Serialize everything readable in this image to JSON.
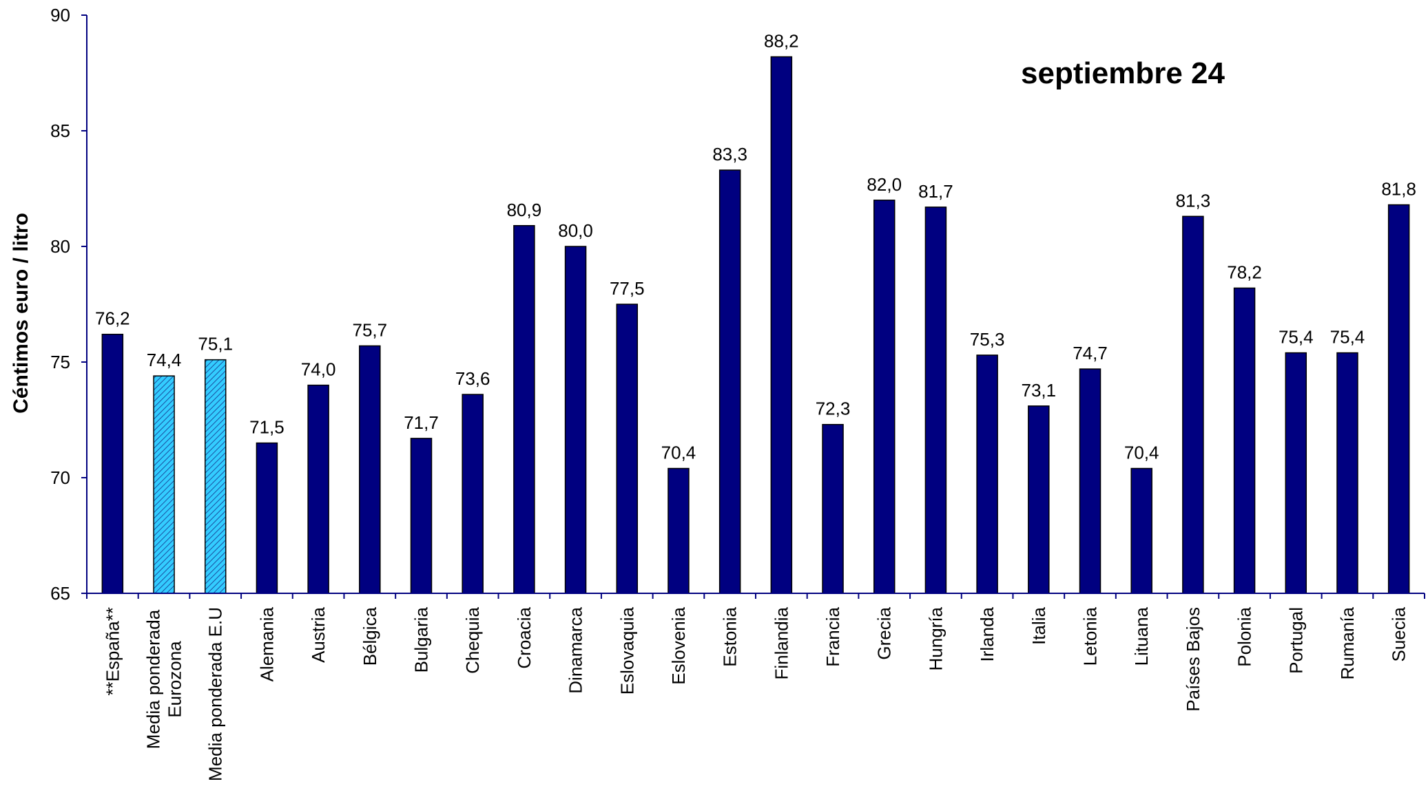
{
  "chart_data": {
    "type": "bar",
    "title": "septiembre 24",
    "ylabel": "Céntimos euro / litro",
    "xlabel": "",
    "ylim": [
      65,
      90
    ],
    "yticks": [
      65,
      70,
      75,
      80,
      85,
      90
    ],
    "grid": false,
    "categories": [
      "**España**",
      "Media ponderada Eurozona",
      "Media ponderada E.U",
      "Alemania",
      "Austria",
      "Bélgica",
      "Bulgaria",
      "Chequia",
      "Croacia",
      "Dinamarca",
      "Eslovaquia",
      "Eslovenia",
      "Estonia",
      "Finlandia",
      "Francia",
      "Grecia",
      "Hungría",
      "Irlanda",
      "Italia",
      "Letonia",
      "Lituana",
      "Países Bajos",
      "Polonia",
      "Portugal",
      "Rumanía",
      "Suecia"
    ],
    "category_lines": [
      [
        "**España**"
      ],
      [
        "Media ponderada",
        "Eurozona"
      ],
      [
        "Media ponderada E.U"
      ],
      [
        "Alemania"
      ],
      [
        "Austria"
      ],
      [
        "Bélgica"
      ],
      [
        "Bulgaria"
      ],
      [
        "Chequia"
      ],
      [
        "Croacia"
      ],
      [
        "Dinamarca"
      ],
      [
        "Eslovaquia"
      ],
      [
        "Eslovenia"
      ],
      [
        "Estonia"
      ],
      [
        "Finlandia"
      ],
      [
        "Francia"
      ],
      [
        "Grecia"
      ],
      [
        "Hungría"
      ],
      [
        "Irlanda"
      ],
      [
        "Italia"
      ],
      [
        "Letonia"
      ],
      [
        "Lituana"
      ],
      [
        "Países Bajos"
      ],
      [
        "Polonia"
      ],
      [
        "Portugal"
      ],
      [
        "Rumanía"
      ],
      [
        "Suecia"
      ]
    ],
    "values": [
      76.2,
      74.4,
      75.1,
      71.5,
      74.0,
      75.7,
      71.7,
      73.6,
      80.9,
      80.0,
      77.5,
      70.4,
      83.3,
      88.2,
      72.3,
      82.0,
      81.7,
      75.3,
      73.1,
      74.7,
      70.4,
      81.3,
      78.2,
      75.4,
      75.4,
      81.8
    ],
    "data_labels": [
      "76,2",
      "74,4",
      "75,1",
      "71,5",
      "74,0",
      "75,7",
      "71,7",
      "73,6",
      "80,9",
      "80,0",
      "77,5",
      "70,4",
      "83,3",
      "88,2",
      "72,3",
      "82,0",
      "81,7",
      "75,3",
      "73,1",
      "74,7",
      "70,4",
      "81,3",
      "78,2",
      "75,4",
      "75,4",
      "81,8"
    ],
    "highlighted": [
      false,
      true,
      true,
      false,
      false,
      false,
      false,
      false,
      false,
      false,
      false,
      false,
      false,
      false,
      false,
      false,
      false,
      false,
      false,
      false,
      false,
      false,
      false,
      false,
      false,
      false
    ],
    "colors": {
      "bar": "#000080",
      "highlight_bar": "#33ccff",
      "axis": "#000080",
      "text": "#000000"
    }
  }
}
